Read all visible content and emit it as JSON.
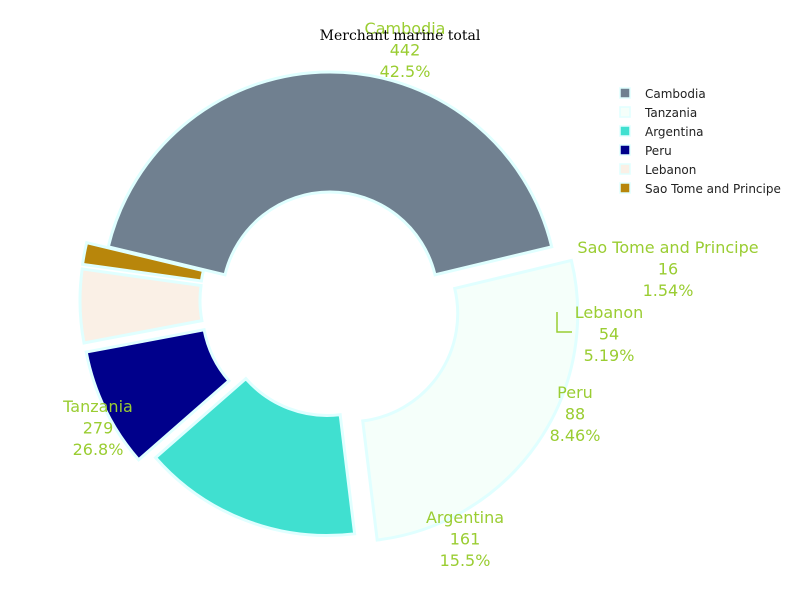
{
  "chart_data": {
    "type": "pie",
    "hole": true,
    "title": "Merchant marine total",
    "categories": [
      "Cambodia",
      "Tanzania",
      "Argentina",
      "Peru",
      "Lebanon",
      "Sao Tome and Principe"
    ],
    "values": [
      442,
      279,
      161,
      88,
      54,
      16
    ],
    "percent_labels": [
      "42.5%",
      "26.8%",
      "15.5%",
      "8.46%",
      "5.19%",
      "1.54%"
    ],
    "colors": [
      "#708090",
      "#f5fffa",
      "#40e0d0",
      "#00008b",
      "#faf0e6",
      "#b8860b"
    ],
    "slice_border_color": "#e0ffff",
    "label_color": "#9acd32",
    "legend_placement": "top-right"
  }
}
